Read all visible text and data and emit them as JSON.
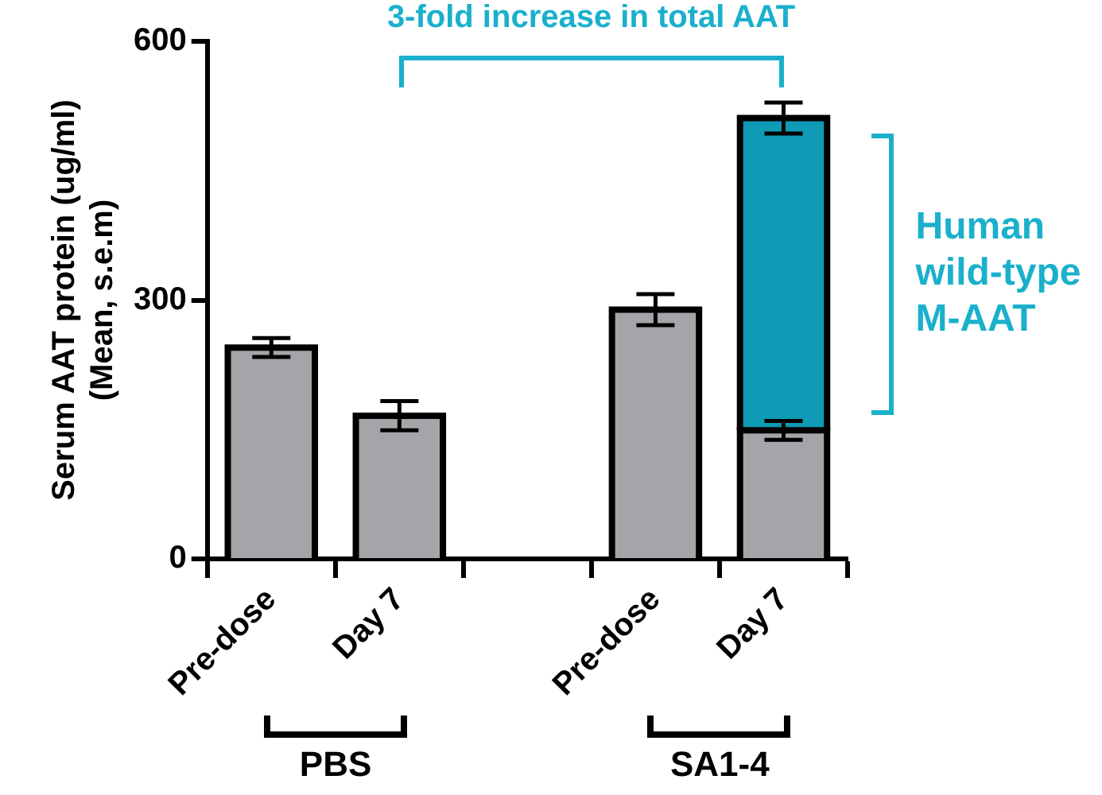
{
  "chart_data": {
    "type": "bar",
    "ylabel": "Serum AAT protein (ug/ml)\n(Mean, s.e.m)",
    "categories": [
      "Pre-dose",
      "Day 7",
      null,
      "Pre-dose",
      "Day 7"
    ],
    "series": [
      {
        "color": "#a5a4a8",
        "values": [
          245,
          166,
          null,
          289,
          149
        ],
        "errors": [
          11,
          17,
          null,
          18,
          11
        ]
      },
      {
        "color": "#0f9ab5",
        "values": [
          null,
          null,
          null,
          null,
          362
        ],
        "errors": [
          null,
          null,
          null,
          null,
          18
        ]
      }
    ],
    "stacked": true,
    "ylim": [
      0,
      600
    ],
    "yticks": [
      0,
      300,
      600
    ],
    "grid": false,
    "annotations": [
      "3-fold increase in total AAT",
      "Human wild-type M-AAT",
      "PBS",
      "SA1-4"
    ]
  }
}
